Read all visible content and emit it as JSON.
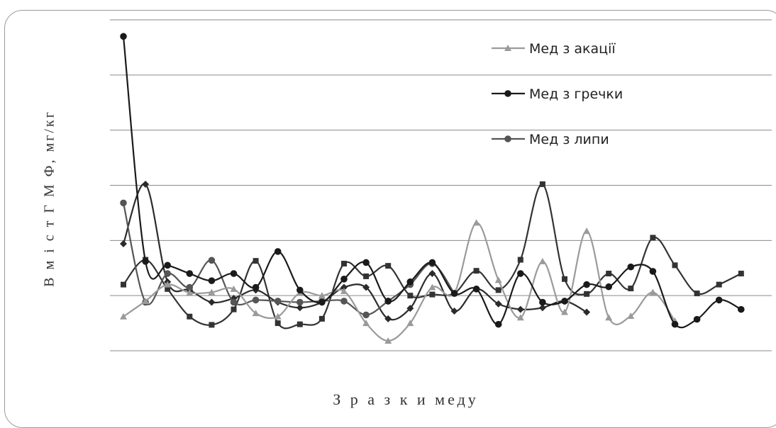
{
  "chart_data": {
    "type": "line",
    "title": "",
    "ylabel": "В м і с т  Г М Ф, мг/кг",
    "xlabel": "З р а з к и  меду",
    "ylim": [
      -1,
      5
    ],
    "grid": true,
    "legend_position": "top-right",
    "series": [
      {
        "name": "Мед з акації",
        "color": "#9a9a9a",
        "marker": "triangle",
        "values": [
          -0.38,
          -0.1,
          0.2,
          0.05,
          0.06,
          0.12,
          -0.32,
          -0.38,
          0.05,
          0.0,
          0.08,
          -0.5,
          -0.82,
          -0.5,
          0.15,
          0.05,
          1.32,
          0.28,
          -0.4,
          0.62,
          -0.3,
          1.17,
          -0.4,
          -0.37,
          0.06,
          -0.46
        ]
      },
      {
        "name": "Мед з гречки",
        "color": "#1a1a1a",
        "marker": "circle",
        "values": [
          4.7,
          0.62,
          0.55,
          0.4,
          0.27,
          0.4,
          0.15,
          0.8,
          0.1,
          -0.12,
          0.3,
          0.6,
          -0.1,
          0.25,
          0.6,
          0.04,
          0.12,
          -0.52,
          0.4,
          -0.12,
          -0.1,
          0.2,
          0.16,
          0.52,
          0.44,
          -0.52,
          -0.43,
          -0.08,
          -0.25
        ]
      },
      {
        "name": "Мед з липи",
        "color": "#555555",
        "marker": "circle",
        "values": [
          1.68,
          -0.12,
          0.4,
          0.15,
          0.64,
          -0.12,
          -0.08,
          -0.1,
          -0.12,
          -0.1,
          -0.1,
          -0.35,
          -0.1,
          0.2,
          0.58,
          0.04
        ]
      },
      {
        "name": "",
        "color": "#333333",
        "marker": "square",
        "values": [
          0.2,
          0.65,
          0.12,
          -0.38,
          -0.53,
          -0.25,
          0.63,
          -0.5,
          -0.52,
          -0.42,
          0.58,
          0.35,
          0.54,
          0.0,
          0.02,
          0.04,
          0.45,
          0.1,
          0.65,
          2.02,
          0.3,
          0.03,
          0.4,
          0.13,
          1.05,
          0.55,
          0.04,
          0.2,
          0.4
        ]
      },
      {
        "name": "",
        "color": "#2b2b2b",
        "marker": "diamond",
        "values": [
          0.94,
          2.02,
          0.25,
          0.1,
          -0.12,
          -0.05,
          0.1,
          -0.12,
          -0.22,
          -0.12,
          0.15,
          0.15,
          -0.42,
          -0.23,
          0.4,
          -0.28,
          0.12,
          -0.15,
          -0.25,
          -0.22,
          -0.1,
          -0.3
        ]
      }
    ]
  }
}
